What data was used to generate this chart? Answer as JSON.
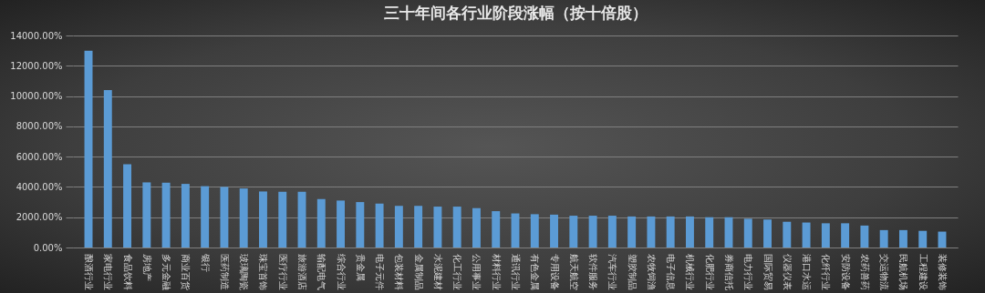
{
  "chart_data": {
    "type": "bar",
    "title": "三十年间各行业阶段涨幅（按十倍股）",
    "categories": [
      "酿酒行业",
      "家电行业",
      "食品饮料",
      "房地产",
      "多元金融",
      "商业百货",
      "银行",
      "医药制造",
      "玻璃陶瓷",
      "珠宝首饰",
      "医疗行业",
      "旅游酒店",
      "输配电气",
      "综合行业",
      "贵金属",
      "电子元件",
      "包装材料",
      "金属制品",
      "水泥建材",
      "化工行业",
      "公用事业",
      "材料行业",
      "通讯行业",
      "有色金属",
      "专用设备",
      "航天航空",
      "软件服务",
      "汽车行业",
      "塑胶制品",
      "农牧饲渔",
      "电子信息",
      "机械行业",
      "化肥行业",
      "券商信托",
      "电力行业",
      "国际贸易",
      "仪器仪表",
      "港口水运",
      "化纤行业",
      "安防设备",
      "农药兽药",
      "交运物流",
      "民航机场",
      "工程建设",
      "装修装饰"
    ],
    "values": [
      13000,
      10400,
      5500,
      4300,
      4280,
      4200,
      4050,
      4000,
      3900,
      3700,
      3680,
      3680,
      3200,
      3100,
      3000,
      2900,
      2750,
      2750,
      2700,
      2700,
      2600,
      2400,
      2250,
      2200,
      2170,
      2100,
      2100,
      2100,
      2050,
      2050,
      2050,
      2050,
      2000,
      2000,
      1900,
      1850,
      1700,
      1650,
      1600,
      1600,
      1450,
      1150,
      1150,
      1100,
      1050
    ],
    "color": "#5b9bd5",
    "ylim": [
      0,
      14000
    ],
    "yticks": [
      {
        "value": 0,
        "label": "0.00%"
      },
      {
        "value": 2000,
        "label": "2000.00%"
      },
      {
        "value": 4000,
        "label": "4000.00%"
      },
      {
        "value": 6000,
        "label": "6000.00%"
      },
      {
        "value": 8000,
        "label": "8000.00%"
      },
      {
        "value": 10000,
        "label": "10000.00%"
      },
      {
        "value": 12000,
        "label": "12000.00%"
      },
      {
        "value": 14000,
        "label": "14000.00%"
      }
    ],
    "grid": "y"
  }
}
